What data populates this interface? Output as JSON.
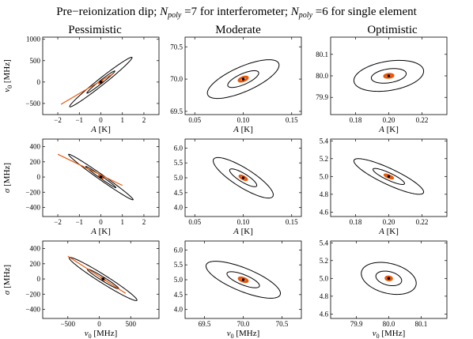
{
  "figure": {
    "title_main": "Pre−reionization dip; ",
    "title_n": "N",
    "title_sub": "poly",
    "title_part2": " =7 for interferometer; ",
    "title_part3": " =6 for single element",
    "columns": [
      "Pessimistic",
      "Moderate",
      "Optimistic"
    ]
  },
  "colors": {
    "outer": "#000000",
    "inner": "#e8590c",
    "point": "#000000"
  },
  "chart_data": [
    {
      "type": "contour",
      "column": "Pessimistic",
      "row": 1,
      "xlabel": {
        "sym": "A",
        "unit": "[K]"
      },
      "ylabel": {
        "sym": "v",
        "sub": "0",
        "unit": "[MHz]"
      },
      "xlim": [
        -2.7,
        2.7
      ],
      "ylim": [
        -760,
        1050
      ],
      "xticks": [
        {
          "v": -2,
          "t": "−2"
        },
        {
          "v": -1,
          "t": "−1"
        },
        {
          "v": 0,
          "t": "0"
        },
        {
          "v": 1,
          "t": "1"
        },
        {
          "v": 2,
          "t": "2"
        }
      ],
      "yticks": [
        {
          "v": -500,
          "t": "−500"
        },
        {
          "v": 0,
          "t": "0"
        },
        {
          "v": 500,
          "t": "500"
        },
        {
          "v": 1000,
          "t": "1000"
        }
      ],
      "center": [
        0,
        0
      ],
      "ellipses": [
        {
          "level": "outer",
          "ax": 1.45,
          "ay": 580,
          "rho": 0.985,
          "width": 1.0
        },
        {
          "level": "middle",
          "ax": 0.65,
          "ay": 260,
          "rho": 0.985,
          "width": 1.0
        },
        {
          "level": "inner",
          "ax": 0.08,
          "ay": 30,
          "rho": 0.98,
          "width": 2.2
        }
      ],
      "extra_lines": [
        {
          "level": "inner",
          "from": [
            -1.85,
            -520
          ],
          "to": [
            0.55,
            190
          ],
          "width": 1.2
        }
      ]
    },
    {
      "type": "contour",
      "column": "Moderate",
      "row": 1,
      "xlabel": {
        "sym": "A",
        "unit": "[K]"
      },
      "ylabel": {
        "sym": "",
        "sub": "",
        "unit": ""
      },
      "xlim": [
        0.04,
        0.16
      ],
      "ylim": [
        69.45,
        70.65
      ],
      "xticks": [
        {
          "v": 0.05,
          "t": "0.05"
        },
        {
          "v": 0.1,
          "t": "0.10"
        },
        {
          "v": 0.15,
          "t": "0.15"
        }
      ],
      "yticks": [
        {
          "v": 69.5,
          "t": "69.5"
        },
        {
          "v": 70.0,
          "t": "70.0"
        },
        {
          "v": 70.5,
          "t": "70.5"
        }
      ],
      "center": [
        0.1,
        70.0
      ],
      "ellipses": [
        {
          "level": "outer",
          "ax": 0.037,
          "ay": 0.3,
          "rho": 0.72,
          "width": 1.0
        },
        {
          "level": "middle",
          "ax": 0.016,
          "ay": 0.13,
          "rho": 0.72,
          "width": 1.0
        },
        {
          "level": "inner",
          "ax": 0.0045,
          "ay": 0.035,
          "rho": 0.6,
          "width": 3.0
        }
      ],
      "extra_lines": []
    },
    {
      "type": "contour",
      "column": "Optimistic",
      "row": 1,
      "xlabel": {
        "sym": "A",
        "unit": "[K]"
      },
      "ylabel": {
        "sym": "",
        "sub": "",
        "unit": ""
      },
      "xlim": [
        0.165,
        0.235
      ],
      "ylim": [
        79.82,
        80.18
      ],
      "xticks": [
        {
          "v": 0.18,
          "t": "0.18"
        },
        {
          "v": 0.2,
          "t": "0.20"
        },
        {
          "v": 0.22,
          "t": "0.22"
        }
      ],
      "yticks": [
        {
          "v": 79.9,
          "t": "79.9"
        },
        {
          "v": 80.0,
          "t": "80.0"
        },
        {
          "v": 80.1,
          "t": "80.1"
        }
      ],
      "center": [
        0.2,
        80.0
      ],
      "ellipses": [
        {
          "level": "outer",
          "ax": 0.021,
          "ay": 0.072,
          "rho": 0.3,
          "width": 1.0
        },
        {
          "level": "middle",
          "ax": 0.0105,
          "ay": 0.034,
          "rho": 0.3,
          "width": 1.0
        },
        {
          "level": "inner",
          "ax": 0.0026,
          "ay": 0.0075,
          "rho": 0.2,
          "width": 3.2
        }
      ],
      "extra_lines": []
    },
    {
      "type": "contour",
      "column": "Pessimistic",
      "row": 2,
      "xlabel": {
        "sym": "A",
        "unit": "[K]"
      },
      "ylabel": {
        "sym": "σ",
        "sub": "",
        "unit": "[MHz]"
      },
      "xlim": [
        -2.7,
        2.7
      ],
      "ylim": [
        -520,
        500
      ],
      "xticks": [
        {
          "v": -2,
          "t": "−2"
        },
        {
          "v": -1,
          "t": "−1"
        },
        {
          "v": 0,
          "t": "0"
        },
        {
          "v": 1,
          "t": "1"
        },
        {
          "v": 2,
          "t": "2"
        }
      ],
      "yticks": [
        {
          "v": -400,
          "t": "−400"
        },
        {
          "v": -200,
          "t": "−200"
        },
        {
          "v": 0,
          "t": "0"
        },
        {
          "v": 200,
          "t": "200"
        },
        {
          "v": 400,
          "t": "400"
        }
      ],
      "center": [
        0,
        0
      ],
      "ellipses": [
        {
          "level": "outer",
          "ax": 1.5,
          "ay": 300,
          "rho": -0.99,
          "width": 1.0
        },
        {
          "level": "middle",
          "ax": 0.7,
          "ay": 140,
          "rho": -0.99,
          "width": 1.0
        },
        {
          "level": "inner",
          "ax": 0.09,
          "ay": 18,
          "rho": -0.98,
          "width": 2.2
        }
      ],
      "extra_lines": [
        {
          "level": "inner",
          "from": [
            -2.0,
            300
          ],
          "to": [
            1.0,
            -110
          ],
          "width": 1.2
        }
      ]
    },
    {
      "type": "contour",
      "column": "Moderate",
      "row": 2,
      "xlabel": {
        "sym": "A",
        "unit": "[K]"
      },
      "ylabel": {
        "sym": "",
        "sub": "",
        "unit": ""
      },
      "xlim": [
        0.04,
        0.16
      ],
      "ylim": [
        3.7,
        6.3
      ],
      "xticks": [
        {
          "v": 0.05,
          "t": "0.05"
        },
        {
          "v": 0.1,
          "t": "0.10"
        },
        {
          "v": 0.15,
          "t": "0.15"
        }
      ],
      "yticks": [
        {
          "v": 4.0,
          "t": "4.0"
        },
        {
          "v": 4.5,
          "t": "4.5"
        },
        {
          "v": 5.0,
          "t": "5.0"
        },
        {
          "v": 5.5,
          "t": "5.5"
        },
        {
          "v": 6.0,
          "t": "6.0"
        }
      ],
      "center": [
        0.1,
        5.0
      ],
      "ellipses": [
        {
          "level": "outer",
          "ax": 0.031,
          "ay": 0.68,
          "rho": -0.84,
          "width": 1.0
        },
        {
          "level": "middle",
          "ax": 0.014,
          "ay": 0.3,
          "rho": -0.84,
          "width": 1.0
        },
        {
          "level": "inner",
          "ax": 0.0038,
          "ay": 0.075,
          "rho": -0.75,
          "width": 2.6
        }
      ],
      "extra_lines": []
    },
    {
      "type": "contour",
      "column": "Optimistic",
      "row": 2,
      "xlabel": {
        "sym": "A",
        "unit": "[K]"
      },
      "ylabel": {
        "sym": "",
        "sub": "",
        "unit": ""
      },
      "xlim": [
        0.165,
        0.235
      ],
      "ylim": [
        4.55,
        5.42
      ],
      "xticks": [
        {
          "v": 0.18,
          "t": "0.18"
        },
        {
          "v": 0.2,
          "t": "0.20"
        },
        {
          "v": 0.22,
          "t": "0.22"
        }
      ],
      "yticks": [
        {
          "v": 4.6,
          "t": "4.6"
        },
        {
          "v": 4.8,
          "t": "4.8"
        },
        {
          "v": 5.0,
          "t": "5.0"
        },
        {
          "v": 5.2,
          "t": "5.2"
        },
        {
          "v": 5.4,
          "t": "5.4"
        }
      ],
      "center": [
        0.2,
        5.0
      ],
      "ellipses": [
        {
          "level": "outer",
          "ax": 0.021,
          "ay": 0.2,
          "rho": -0.87,
          "width": 1.0
        },
        {
          "level": "middle",
          "ax": 0.0095,
          "ay": 0.09,
          "rho": -0.87,
          "width": 1.0
        },
        {
          "level": "inner",
          "ax": 0.0025,
          "ay": 0.022,
          "rho": -0.8,
          "width": 2.6
        }
      ],
      "extra_lines": []
    },
    {
      "type": "contour",
      "column": "Pessimistic",
      "row": 3,
      "xlabel": {
        "sym": "v",
        "sub": "0",
        "unit": "[MHz]"
      },
      "ylabel": {
        "sym": "σ",
        "sub": "",
        "unit": "[MHz]"
      },
      "xlim": [
        -900,
        950
      ],
      "ylim": [
        -520,
        500
      ],
      "xticks": [
        {
          "v": -500,
          "t": "−500"
        },
        {
          "v": 0,
          "t": "0"
        },
        {
          "v": 500,
          "t": "500"
        }
      ],
      "yticks": [
        {
          "v": -400,
          "t": "−400"
        },
        {
          "v": -200,
          "t": "−200"
        },
        {
          "v": 0,
          "t": "0"
        },
        {
          "v": 200,
          "t": "200"
        },
        {
          "v": 400,
          "t": "400"
        }
      ],
      "center": [
        60,
        0
      ],
      "ellipses": [
        {
          "level": "outer",
          "ax": 540,
          "ay": 285,
          "rho": -0.975,
          "width": 1.0
        },
        {
          "level": "middle",
          "ax": 250,
          "ay": 130,
          "rho": -0.975,
          "width": 1.0
        },
        {
          "level": "inner",
          "ax": 30,
          "ay": 16,
          "rho": -0.96,
          "width": 2.2
        }
      ],
      "extra_lines": [
        {
          "level": "inner",
          "from": [
            -500,
            300
          ],
          "to": [
            420,
            -190
          ],
          "width": 1.2
        }
      ]
    },
    {
      "type": "contour",
      "column": "Moderate",
      "row": 3,
      "xlabel": {
        "sym": "v",
        "sub": "0",
        "unit": "[MHz]"
      },
      "ylabel": {
        "sym": "",
        "sub": "",
        "unit": ""
      },
      "xlim": [
        69.25,
        70.75
      ],
      "ylim": [
        3.7,
        6.3
      ],
      "xticks": [
        {
          "v": 69.5,
          "t": "69.5"
        },
        {
          "v": 70.0,
          "t": "70.0"
        },
        {
          "v": 70.5,
          "t": "70.5"
        }
      ],
      "yticks": [
        {
          "v": 4.0,
          "t": "4.0"
        },
        {
          "v": 4.5,
          "t": "4.5"
        },
        {
          "v": 5.0,
          "t": "5.0"
        },
        {
          "v": 5.5,
          "t": "5.5"
        },
        {
          "v": 6.0,
          "t": "6.0"
        }
      ],
      "center": [
        70.0,
        5.0
      ],
      "ellipses": [
        {
          "level": "outer",
          "ax": 0.48,
          "ay": 0.62,
          "rho": -0.74,
          "width": 1.0
        },
        {
          "level": "middle",
          "ax": 0.21,
          "ay": 0.27,
          "rho": -0.74,
          "width": 1.0
        },
        {
          "level": "inner",
          "ax": 0.055,
          "ay": 0.07,
          "rho": -0.6,
          "width": 3.0
        }
      ],
      "extra_lines": []
    },
    {
      "type": "contour",
      "column": "Optimistic",
      "row": 3,
      "xlabel": {
        "sym": "v",
        "sub": "0",
        "unit": "[MHz]"
      },
      "ylabel": {
        "sym": "",
        "sub": "",
        "unit": ""
      },
      "xlim": [
        79.82,
        80.18
      ],
      "ylim": [
        4.55,
        5.42
      ],
      "xticks": [
        {
          "v": 79.9,
          "t": "79.9"
        },
        {
          "v": 80.0,
          "t": "80.0"
        },
        {
          "v": 80.1,
          "t": "80.1"
        }
      ],
      "yticks": [
        {
          "v": 4.6,
          "t": "4.6"
        },
        {
          "v": 4.8,
          "t": "4.8"
        },
        {
          "v": 5.0,
          "t": "5.0"
        },
        {
          "v": 5.2,
          "t": "5.2"
        },
        {
          "v": 5.4,
          "t": "5.4"
        }
      ],
      "center": [
        80.0,
        5.0
      ],
      "ellipses": [
        {
          "level": "outer",
          "ax": 0.085,
          "ay": 0.18,
          "rho": -0.3,
          "width": 1.0
        },
        {
          "level": "middle",
          "ax": 0.04,
          "ay": 0.082,
          "rho": -0.3,
          "width": 1.0
        },
        {
          "level": "inner",
          "ax": 0.009,
          "ay": 0.018,
          "rho": -0.15,
          "width": 3.2
        }
      ],
      "extra_lines": []
    }
  ]
}
